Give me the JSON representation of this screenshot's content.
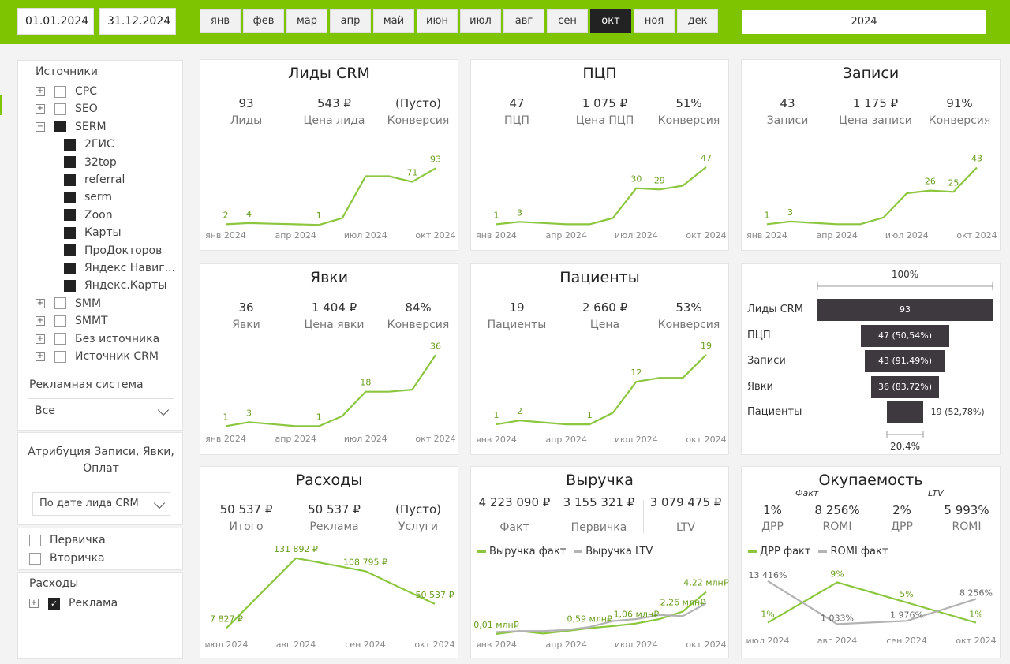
{
  "header": {
    "date_from": "01.01.2024",
    "date_to": "31.12.2024",
    "months": [
      "янв",
      "фев",
      "мар",
      "апр",
      "май",
      "июн",
      "июл",
      "авг",
      "сен",
      "окт",
      "ноя",
      "дек"
    ],
    "active_month": "окт",
    "year": "2024"
  },
  "sidebar": {
    "sources_title": "Источники",
    "sources": [
      {
        "label": "CPC",
        "expander": "+",
        "state": "empty",
        "child": false
      },
      {
        "label": "SEO",
        "expander": "+",
        "state": "empty",
        "child": false
      },
      {
        "label": "SERM",
        "expander": "−",
        "state": "filled",
        "child": false
      },
      {
        "label": "2ГИС",
        "state": "filled",
        "child": true
      },
      {
        "label": "32top",
        "state": "filled",
        "child": true
      },
      {
        "label": "referral",
        "state": "filled",
        "child": true
      },
      {
        "label": "serm",
        "state": "filled",
        "child": true
      },
      {
        "label": "Zoon",
        "state": "filled",
        "child": true
      },
      {
        "label": "Карты",
        "state": "filled",
        "child": true
      },
      {
        "label": "ПроДокторов",
        "state": "filled",
        "child": true
      },
      {
        "label": "Яндекс Навиг...",
        "state": "filled",
        "child": true
      },
      {
        "label": "Яндекс.Карты",
        "state": "filled",
        "child": true
      },
      {
        "label": "SMM",
        "expander": "+",
        "state": "empty",
        "child": false
      },
      {
        "label": "SMMT",
        "expander": "+",
        "state": "empty",
        "child": false
      },
      {
        "label": "Без источника",
        "expander": "+",
        "state": "empty",
        "child": false
      },
      {
        "label": "Источник CRM",
        "expander": "+",
        "state": "empty",
        "child": false
      }
    ],
    "ad_system_title": "Рекламная система",
    "ad_system_value": "Все",
    "attribution_title": "Атрибуция Записи, Явки, Оплат",
    "attribution_value": "По дате лида CRM",
    "visit_types": [
      "Первичка",
      "Вторичка"
    ],
    "expenses_title": "Расходы",
    "expenses_item": "Реклама"
  },
  "cards": {
    "leads": {
      "title": "Лиды CRM",
      "kpis": [
        {
          "value": "93",
          "label": "Лиды"
        },
        {
          "value": "543 ₽",
          "label": "Цена лида"
        },
        {
          "value": "(Пусто)",
          "label": "Конверсия"
        }
      ]
    },
    "pcp": {
      "title": "ПЦП",
      "kpis": [
        {
          "value": "47",
          "label": "ПЦП"
        },
        {
          "value": "1 075 ₽",
          "label": "Цена ПЦП"
        },
        {
          "value": "51%",
          "label": "Конверсия"
        }
      ]
    },
    "records": {
      "title": "Записи",
      "kpis": [
        {
          "value": "43",
          "label": "Записи"
        },
        {
          "value": "1 175 ₽",
          "label": "Цена записи"
        },
        {
          "value": "91%",
          "label": "Конверсия"
        }
      ]
    },
    "visits": {
      "title": "Явки",
      "kpis": [
        {
          "value": "36",
          "label": "Явки"
        },
        {
          "value": "1 404 ₽",
          "label": "Цена явки"
        },
        {
          "value": "84%",
          "label": "Конверсия"
        }
      ]
    },
    "patients": {
      "title": "Пациенты",
      "kpis": [
        {
          "value": "19",
          "label": "Пациенты"
        },
        {
          "value": "2 660 ₽",
          "label": "Цена"
        },
        {
          "value": "53%",
          "label": "Конверсия"
        }
      ]
    },
    "funnel": {
      "top_label": "100%",
      "bottom_label": "20,4%",
      "stages": [
        {
          "label": "Лиды CRM",
          "value": 93,
          "text": "93"
        },
        {
          "label": "ПЦП",
          "value": 47,
          "text": "47 (50,54%)"
        },
        {
          "label": "Записи",
          "value": 43,
          "text": "43 (91,49%)"
        },
        {
          "label": "Явки",
          "value": 36,
          "text": "36 (83,72%)"
        },
        {
          "label": "Пациенты",
          "value": 19,
          "text": "19 (52,78%)"
        }
      ]
    },
    "expenses": {
      "title": "Расходы",
      "kpis": [
        {
          "value": "50 537 ₽",
          "label": "Итого"
        },
        {
          "value": "50 537 ₽",
          "label": "Реклама"
        },
        {
          "value": "(Пусто)",
          "label": "Услуги"
        }
      ]
    },
    "revenue": {
      "title": "Выручка",
      "kpis": [
        {
          "value": "4 223 090 ₽",
          "label": "Факт"
        },
        {
          "value": "3 155 321 ₽",
          "label": "Первичка"
        },
        {
          "value": "3 079 475 ₽",
          "label": "LTV"
        }
      ],
      "legend": [
        "Выручка факт",
        "Выручка LTV"
      ]
    },
    "payback": {
      "title": "Окупаемость",
      "fact_caption": "Факт",
      "ltv_caption": "LTV",
      "kpis": [
        {
          "value": "1%",
          "label": "ДРР"
        },
        {
          "value": "8 256%",
          "label": "ROMI"
        },
        {
          "value": "2%",
          "label": "ДРР"
        },
        {
          "value": "5 993%",
          "label": "ROMI"
        }
      ],
      "legend": [
        "ДРР факт",
        "ROMI факт"
      ]
    }
  },
  "colors": {
    "accent": "#7ec400",
    "line_green": "#8cc63f",
    "line_gray": "#b3b3b3",
    "dark": "#3d393e"
  },
  "chart_data": [
    {
      "id": "leads",
      "type": "line",
      "x": [
        "янв 2024",
        "фев 2024",
        "мар 2024",
        "апр 2024",
        "май 2024",
        "июн 2024",
        "июл 2024",
        "авг 2024",
        "сен 2024",
        "окт 2024"
      ],
      "x_tick_labels": [
        "янв 2024",
        "апр 2024",
        "июл 2024",
        "окт 2024"
      ],
      "ylim": [
        0,
        105
      ],
      "series": [
        {
          "values": [
            2,
            4,
            3,
            2,
            1,
            12,
            80,
            80,
            71,
            93
          ]
        }
      ],
      "data_labels": [
        {
          "i": 0,
          "text": "2"
        },
        {
          "i": 1,
          "text": "4"
        },
        {
          "i": 4,
          "text": "1"
        },
        {
          "i": 8,
          "text": "71"
        },
        {
          "i": 9,
          "text": "93"
        }
      ]
    },
    {
      "id": "pcp",
      "type": "line",
      "x": [
        "янв 2024",
        "фев 2024",
        "мар 2024",
        "апр 2024",
        "май 2024",
        "июн 2024",
        "июл 2024",
        "авг 2024",
        "сен 2024",
        "окт 2024"
      ],
      "x_tick_labels": [
        "янв 2024",
        "апр 2024",
        "июл 2024",
        "окт 2024"
      ],
      "ylim": [
        0,
        52
      ],
      "series": [
        {
          "values": [
            1,
            3,
            2,
            1,
            1,
            6,
            30,
            29,
            32,
            47
          ]
        }
      ],
      "data_labels": [
        {
          "i": 0,
          "text": "1"
        },
        {
          "i": 1,
          "text": "3"
        },
        {
          "i": 6,
          "text": "30"
        },
        {
          "i": 7,
          "text": "29"
        },
        {
          "i": 9,
          "text": "47"
        }
      ]
    },
    {
      "id": "records",
      "type": "line",
      "x": [
        "янв 2024",
        "фев 2024",
        "мар 2024",
        "апр 2024",
        "май 2024",
        "июн 2024",
        "июл 2024",
        "авг 2024",
        "сен 2024",
        "окт 2024"
      ],
      "x_tick_labels": [
        "янв 2024",
        "апр 2024",
        "июл 2024",
        "окт 2024"
      ],
      "ylim": [
        0,
        48
      ],
      "series": [
        {
          "values": [
            1,
            3,
            2,
            1,
            1,
            6,
            24,
            26,
            25,
            43
          ]
        }
      ],
      "data_labels": [
        {
          "i": 0,
          "text": "1"
        },
        {
          "i": 1,
          "text": "3"
        },
        {
          "i": 7,
          "text": "26"
        },
        {
          "i": 8,
          "text": "25"
        },
        {
          "i": 9,
          "text": "43"
        }
      ]
    },
    {
      "id": "visits",
      "type": "line",
      "x": [
        "янв 2024",
        "фев 2024",
        "мар 2024",
        "апр 2024",
        "май 2024",
        "июн 2024",
        "июл 2024",
        "авг 2024",
        "сен 2024",
        "окт 2024"
      ],
      "x_tick_labels": [
        "янв 2024",
        "апр 2024",
        "июл 2024",
        "окт 2024"
      ],
      "ylim": [
        0,
        40
      ],
      "series": [
        {
          "values": [
            1,
            3,
            2,
            1,
            1,
            6,
            18,
            18,
            19,
            36
          ]
        }
      ],
      "data_labels": [
        {
          "i": 0,
          "text": "1"
        },
        {
          "i": 1,
          "text": "3"
        },
        {
          "i": 4,
          "text": "1"
        },
        {
          "i": 6,
          "text": "18"
        },
        {
          "i": 9,
          "text": "36"
        }
      ]
    },
    {
      "id": "patients",
      "type": "line",
      "x": [
        "янв 2024",
        "фев 2024",
        "мар 2024",
        "апр 2024",
        "май 2024",
        "июн 2024",
        "июл 2024",
        "авг 2024",
        "сен 2024",
        "окт 2024"
      ],
      "x_tick_labels": [
        "янв 2024",
        "апр 2024",
        "июл 2024",
        "окт 2024"
      ],
      "ylim": [
        0,
        21
      ],
      "series": [
        {
          "values": [
            1,
            2,
            1.5,
            1,
            1,
            4,
            12,
            13,
            13,
            19
          ]
        }
      ],
      "data_labels": [
        {
          "i": 0,
          "text": "1"
        },
        {
          "i": 1,
          "text": "2"
        },
        {
          "i": 4,
          "text": "1"
        },
        {
          "i": 6,
          "text": "12"
        },
        {
          "i": 9,
          "text": "19"
        }
      ]
    },
    {
      "id": "expenses",
      "type": "line",
      "x": [
        "июл 2024",
        "авг 2024",
        "сен 2024",
        "окт 2024"
      ],
      "x_tick_labels": [
        "июл 2024",
        "авг 2024",
        "сен 2024",
        "окт 2024"
      ],
      "ylim": [
        0,
        140000
      ],
      "series": [
        {
          "values": [
            7827,
            131892,
            108795,
            50537
          ]
        }
      ],
      "data_labels": [
        {
          "i": 0,
          "text": "7 827 ₽"
        },
        {
          "i": 1,
          "text": "131 892 ₽"
        },
        {
          "i": 2,
          "text": "108 795 ₽"
        },
        {
          "i": 3,
          "text": "50 537 ₽"
        }
      ]
    },
    {
      "id": "revenue",
      "type": "line",
      "x": [
        "янв 2024",
        "фев 2024",
        "мар 2024",
        "апр 2024",
        "май 2024",
        "июн 2024",
        "июл 2024",
        "авг 2024",
        "сен 2024",
        "окт 2024"
      ],
      "x_tick_labels": [
        "янв 2024",
        "апр 2024",
        "июл 2024",
        "окт 2024"
      ],
      "ylim": [
        0,
        4.5
      ],
      "series": [
        {
          "name": "Выручка факт",
          "values": [
            0.01,
            0.3,
            0.05,
            0.3,
            0.59,
            0.8,
            1.06,
            1.5,
            2.26,
            4.22
          ]
        },
        {
          "name": "Выручка LTV",
          "values": [
            0.2,
            0.3,
            0.3,
            0.4,
            0.7,
            1.3,
            1.5,
            1.9,
            1.8,
            3.08
          ]
        }
      ],
      "data_labels": [
        {
          "i": 0,
          "text": "0,01 млн₽"
        },
        {
          "i": 4,
          "text": "0,59 млн₽"
        },
        {
          "i": 6,
          "text": "1,06 млн₽"
        },
        {
          "i": 8,
          "text": "2,26 млн₽"
        },
        {
          "i": 9,
          "text": "4,22 млн₽"
        }
      ]
    },
    {
      "id": "payback",
      "type": "line",
      "x": [
        "июл 2024",
        "авг 2024",
        "сен 2024",
        "окт 2024"
      ],
      "x_tick_labels": [
        "июл 2024",
        "авг 2024",
        "сен 2024",
        "окт 2024"
      ],
      "series": [
        {
          "name": "ДРР факт",
          "values": [
            1,
            9,
            5,
            1
          ],
          "labels": [
            "1%",
            "9%",
            "5%",
            "1%"
          ],
          "ylim": [
            0,
            10
          ]
        },
        {
          "name": "ROMI факт",
          "values": [
            13416,
            1033,
            1976,
            8256
          ],
          "labels": [
            "13 416%",
            "1 033%",
            "1 976%",
            "8 256%"
          ],
          "ylim": [
            0,
            14500
          ]
        }
      ]
    }
  ]
}
